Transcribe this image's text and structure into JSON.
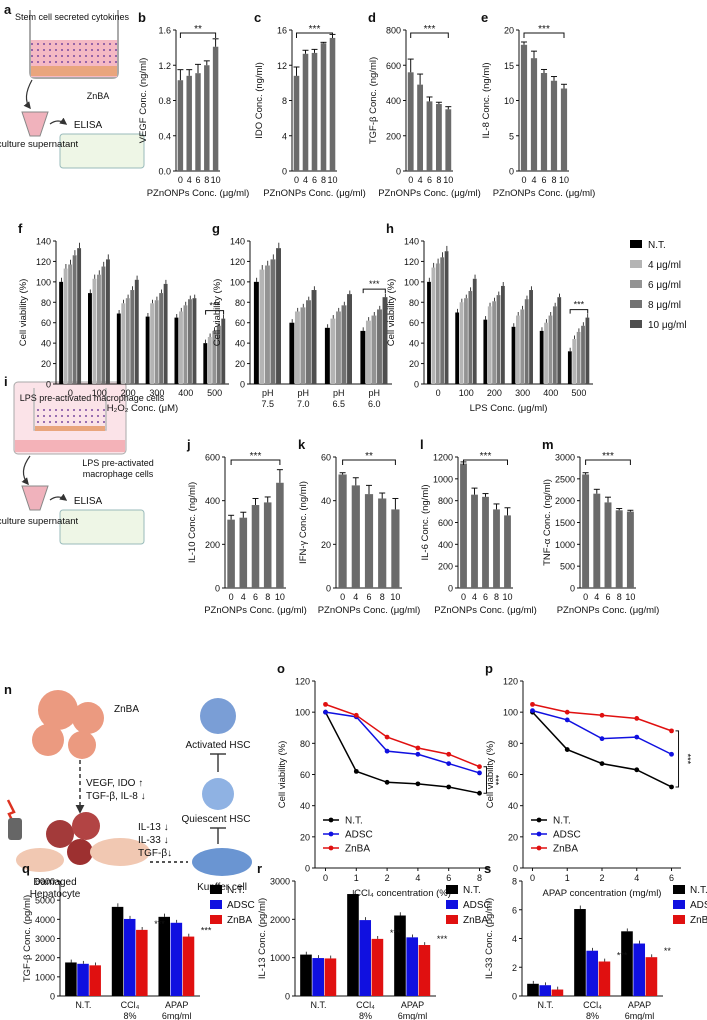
{
  "figure": {
    "schematic_a": {
      "label": "a",
      "texts": [
        "Stem cell secreted cytokines",
        "ZnBA",
        "Cell culture supernatant",
        "ELISA"
      ]
    },
    "schematic_i": {
      "label": "i",
      "texts": [
        "ZnBA",
        "LPS pre-activated macrophage cells",
        "Cell culture supernatant",
        "ELISA"
      ]
    },
    "schematic_n": {
      "label": "n",
      "texts": [
        "ZnBA",
        "VEGF, IDO ↑",
        "TGF-β, IL-8 ↓",
        "IL-13 ↓",
        "IL-33 ↓",
        "TGF-β↓",
        "Activated HSC",
        "Quiescent HSC",
        "Kupffer cell",
        "Damaged Hepatocyte"
      ]
    },
    "legend_viability": {
      "items": [
        "N.T.",
        "4 μg/ml",
        "6 μg/ml",
        "8 μg/ml",
        "10 μg/ml"
      ]
    },
    "colors": {
      "bar_gray": "#6b6b6b",
      "black": "#000000",
      "blue": "#1010e0",
      "red": "#e01010",
      "pink": "#f4b2b8",
      "salmon": "#eb9a80"
    }
  },
  "chart_data": [
    {
      "id": "b",
      "label": "b",
      "type": "bar",
      "categories": [
        "0",
        "4",
        "6",
        "8",
        "10"
      ],
      "values": [
        1.03,
        1.08,
        1.11,
        1.2,
        1.41
      ],
      "errors": [
        0.12,
        0.07,
        0.1,
        0.05,
        0.09
      ],
      "ylabel": "VEGF Conc. (ng/ml)",
      "xlabel": "PZnONPs Conc. (μg/ml)",
      "ylim": [
        0,
        1.6
      ],
      "yticks": [
        "0.0",
        "0.4",
        "0.8",
        "1.2",
        "1.6"
      ],
      "sig": "**"
    },
    {
      "id": "c",
      "label": "c",
      "type": "bar",
      "categories": [
        "0",
        "4",
        "6",
        "8",
        "10"
      ],
      "values": [
        10.8,
        13.3,
        13.4,
        14.5,
        15.1
      ],
      "errors": [
        1,
        0.4,
        0.4,
        0.1,
        0.4
      ],
      "ylabel": "IDO Conc. (ng/ml)",
      "xlabel": "PZnONPs Conc. (μg/ml)",
      "ylim": [
        0,
        16
      ],
      "yticks": [
        "0",
        "4",
        "8",
        "12",
        "16"
      ],
      "sig": "***"
    },
    {
      "id": "d",
      "label": "d",
      "type": "bar",
      "categories": [
        "0",
        "4",
        "6",
        "8",
        "10"
      ],
      "values": [
        560,
        490,
        395,
        380,
        350
      ],
      "errors": [
        75,
        60,
        25,
        10,
        15
      ],
      "ylabel": "TGF-β Conc. (ng/ml)",
      "xlabel": "PZnONPs Conc. (μg/ml)",
      "ylim": [
        0,
        800
      ],
      "yticks": [
        "0",
        "200",
        "400",
        "600",
        "800"
      ],
      "sig": "***"
    },
    {
      "id": "e",
      "label": "e",
      "type": "bar",
      "categories": [
        "0",
        "4",
        "6",
        "8",
        "10"
      ],
      "values": [
        17.9,
        16,
        13.9,
        12.8,
        11.7
      ],
      "errors": [
        0.4,
        1,
        0.5,
        0.6,
        0.6
      ],
      "ylabel": "IL-8 Conc. (ng/ml)",
      "xlabel": "PZnONPs Conc. (μg/ml)",
      "ylim": [
        0,
        20
      ],
      "yticks": [
        "0",
        "5",
        "10",
        "15",
        "20"
      ],
      "sig": "***"
    },
    {
      "id": "f",
      "label": "f",
      "type": "bar",
      "categories": [
        "0",
        "100",
        "200",
        "300",
        "400",
        "500"
      ],
      "series": [
        {
          "name": "N.T.",
          "values": [
            100,
            89,
            69,
            66,
            65,
            40
          ]
        },
        {
          "name": "4 μg/ml",
          "values": [
            113,
            103,
            79,
            79,
            71,
            46
          ]
        },
        {
          "name": "6 μg/ml",
          "values": [
            117,
            107,
            84,
            82,
            77,
            52
          ]
        },
        {
          "name": "8 μg/ml",
          "values": [
            126,
            115,
            92,
            89,
            83,
            57
          ]
        },
        {
          "name": "10 μg/ml",
          "values": [
            133,
            122,
            102,
            98,
            84,
            64
          ]
        }
      ],
      "ylabel": "Cell viability (%)",
      "xlabel": "H₂O₂ Conc. (μM)",
      "ylim": [
        0,
        140
      ],
      "yticks": [
        "0",
        "20",
        "40",
        "60",
        "80",
        "100",
        "120",
        "140"
      ],
      "sig": "***"
    },
    {
      "id": "g",
      "label": "g",
      "type": "bar",
      "categories": [
        "pH 7.5",
        "pH 7.0",
        "pH 6.5",
        "pH 6.0"
      ],
      "series": [
        {
          "name": "N.T.",
          "values": [
            100,
            60,
            55,
            52
          ]
        },
        {
          "name": "4 μg/ml",
          "values": [
            112,
            71,
            64,
            62
          ]
        },
        {
          "name": "6 μg/ml",
          "values": [
            116,
            75,
            71,
            67
          ]
        },
        {
          "name": "8 μg/ml",
          "values": [
            122,
            82,
            77,
            73
          ]
        },
        {
          "name": "10 μg/ml",
          "values": [
            133,
            92,
            88,
            85
          ]
        }
      ],
      "ylabel": "Cell viability (%)",
      "xlabel": "",
      "ylim": [
        0,
        140
      ],
      "yticks": [
        "0",
        "20",
        "40",
        "60",
        "80",
        "100",
        "120",
        "140"
      ],
      "sig": "***"
    },
    {
      "id": "h",
      "label": "h",
      "type": "bar",
      "categories": [
        "0",
        "100",
        "200",
        "300",
        "400",
        "500"
      ],
      "series": [
        {
          "name": "N.T.",
          "values": [
            100,
            70,
            63,
            56,
            52,
            32
          ]
        },
        {
          "name": "4 μg/ml",
          "values": [
            114,
            80,
            76,
            67,
            60,
            44
          ]
        },
        {
          "name": "6 μg/ml",
          "values": [
            118,
            84,
            81,
            73,
            67,
            51
          ]
        },
        {
          "name": "8 μg/ml",
          "values": [
            124,
            91,
            87,
            83,
            76,
            57
          ]
        },
        {
          "name": "10 μg/ml",
          "values": [
            130,
            103,
            96,
            92,
            85,
            65
          ]
        }
      ],
      "ylabel": "Cell viability (%)",
      "xlabel": "LPS Conc. (μg/ml)",
      "ylim": [
        0,
        140
      ],
      "yticks": [
        "0",
        "20",
        "40",
        "60",
        "80",
        "100",
        "120",
        "140"
      ],
      "sig": "***"
    },
    {
      "id": "j",
      "label": "j",
      "type": "bar",
      "categories": [
        "0",
        "4",
        "6",
        "8",
        "10"
      ],
      "values": [
        313,
        322,
        380,
        392,
        482
      ],
      "errors": [
        20,
        25,
        30,
        25,
        60
      ],
      "ylabel": "IL-10 Conc. (ng/ml)",
      "xlabel": "PZnONPs Conc. (μg/ml)",
      "ylim": [
        0,
        600
      ],
      "yticks": [
        "0",
        "200",
        "400",
        "600"
      ],
      "sig": "***"
    },
    {
      "id": "k",
      "label": "k",
      "type": "bar",
      "categories": [
        "0",
        "4",
        "6",
        "8",
        "10"
      ],
      "values": [
        52,
        47,
        43,
        41,
        36
      ],
      "errors": [
        0.8,
        3.5,
        4,
        2.5,
        5
      ],
      "ylabel": "IFN-γ Conc. (ng/ml)",
      "xlabel": "PZnONPs Conc. (μg/ml)",
      "ylim": [
        0,
        60
      ],
      "yticks": [
        "0",
        "20",
        "40",
        "60"
      ],
      "sig": "**"
    },
    {
      "id": "l",
      "label": "l",
      "type": "bar",
      "categories": [
        "0",
        "4",
        "6",
        "8",
        "10"
      ],
      "values": [
        1140,
        855,
        835,
        720,
        665
      ],
      "errors": [
        15,
        60,
        30,
        50,
        70
      ],
      "ylabel": "IL-6 Conc. (ng/ml)",
      "xlabel": "PZnONPs Conc. (μg/ml)",
      "ylim": [
        0,
        1200
      ],
      "yticks": [
        "0",
        "200",
        "400",
        "600",
        "800",
        "1000",
        "1200"
      ],
      "sig": "***"
    },
    {
      "id": "m",
      "label": "m",
      "type": "bar",
      "categories": [
        "0",
        "4",
        "6",
        "8",
        "10"
      ],
      "values": [
        2600,
        2160,
        1960,
        1780,
        1750
      ],
      "errors": [
        40,
        100,
        120,
        40,
        30
      ],
      "ylabel": "TNF-α Conc. (ng/ml)",
      "xlabel": "PZnONPs Conc. (μg/ml)",
      "ylim": [
        0,
        3000
      ],
      "yticks": [
        "0",
        "500",
        "1000",
        "1500",
        "2000",
        "2500",
        "3000"
      ],
      "sig": "***"
    },
    {
      "id": "o",
      "label": "o",
      "type": "line",
      "x": [
        "0",
        "1",
        "2",
        "4",
        "6",
        "8"
      ],
      "series": [
        {
          "name": "N.T.",
          "values": [
            100,
            62,
            55,
            54,
            52,
            48
          ]
        },
        {
          "name": "ADSC",
          "values": [
            100,
            97,
            75,
            73,
            67,
            61
          ]
        },
        {
          "name": "ZnBA",
          "values": [
            105,
            98,
            84,
            77,
            73,
            65
          ]
        }
      ],
      "ylabel": "Cell viability (%)",
      "xlabel": "CCl₄ concentration (%)",
      "ylim": [
        0,
        120
      ],
      "yticks": [
        "0",
        "20",
        "40",
        "60",
        "80",
        "100",
        "120"
      ],
      "sig": "***"
    },
    {
      "id": "p",
      "label": "p",
      "type": "line",
      "x": [
        "0",
        "1",
        "2",
        "4",
        "6"
      ],
      "series": [
        {
          "name": "N.T.",
          "values": [
            100,
            76,
            67,
            63,
            52
          ]
        },
        {
          "name": "ADSC",
          "values": [
            101,
            95,
            83,
            84,
            73
          ]
        },
        {
          "name": "ZnBA",
          "values": [
            105,
            100,
            98,
            96,
            88
          ]
        }
      ],
      "ylabel": "Cell viability (%)",
      "xlabel": "APAP concentration (mg/ml)",
      "ylim": [
        0,
        120
      ],
      "yticks": [
        "0",
        "20",
        "40",
        "60",
        "80",
        "100",
        "120"
      ],
      "sig": "***"
    },
    {
      "id": "q",
      "label": "q",
      "type": "bar",
      "categories": [
        "N.T.",
        "CCl₄ 8%",
        "APAP 6mg/ml"
      ],
      "series": [
        {
          "name": "N.T.",
          "values": [
            1750,
            4650,
            4130
          ]
        },
        {
          "name": "ADSC",
          "values": [
            1680,
            4020,
            3820
          ]
        },
        {
          "name": "ZnBA",
          "values": [
            1600,
            3450,
            3100
          ]
        }
      ],
      "ylabel": "TGF-β Conc. (pg/ml)",
      "xlabel": "",
      "ylim": [
        0,
        6000
      ],
      "yticks": [
        "0",
        "1000",
        "2000",
        "3000",
        "4000",
        "5000",
        "6000"
      ],
      "sig_labels": [
        "***",
        "***"
      ]
    },
    {
      "id": "r",
      "label": "r",
      "type": "bar",
      "categories": [
        "N.T.",
        "CCl₄ 8%",
        "APAP 6mg/ml"
      ],
      "series": [
        {
          "name": "N.T.",
          "values": [
            1080,
            2660,
            2100
          ]
        },
        {
          "name": "ADSC",
          "values": [
            990,
            1980,
            1530
          ]
        },
        {
          "name": "ZnBA",
          "values": [
            980,
            1490,
            1330
          ]
        }
      ],
      "ylabel": "IL-13 Conc. (pg/ml)",
      "xlabel": "",
      "ylim": [
        0,
        3000
      ],
      "yticks": [
        "0",
        "1000",
        "2000",
        "3000"
      ],
      "sig_labels": [
        "***",
        "***"
      ]
    },
    {
      "id": "s",
      "label": "s",
      "type": "bar",
      "categories": [
        "N.T.",
        "CCl₄ 8%",
        "APAP 6mg/ml"
      ],
      "series": [
        {
          "name": "N.T.",
          "values": [
            0.85,
            6.05,
            4.5
          ]
        },
        {
          "name": "ADSC",
          "values": [
            0.75,
            3.15,
            3.65
          ]
        },
        {
          "name": "ZnBA",
          "values": [
            0.45,
            2.4,
            2.7
          ]
        }
      ],
      "ylabel": "IL-33 Conc. (pg/ml)",
      "xlabel": "",
      "ylim": [
        0,
        8
      ],
      "yticks": [
        "0",
        "2",
        "4",
        "6",
        "8"
      ],
      "sig_labels": [
        "***",
        "**"
      ]
    }
  ]
}
